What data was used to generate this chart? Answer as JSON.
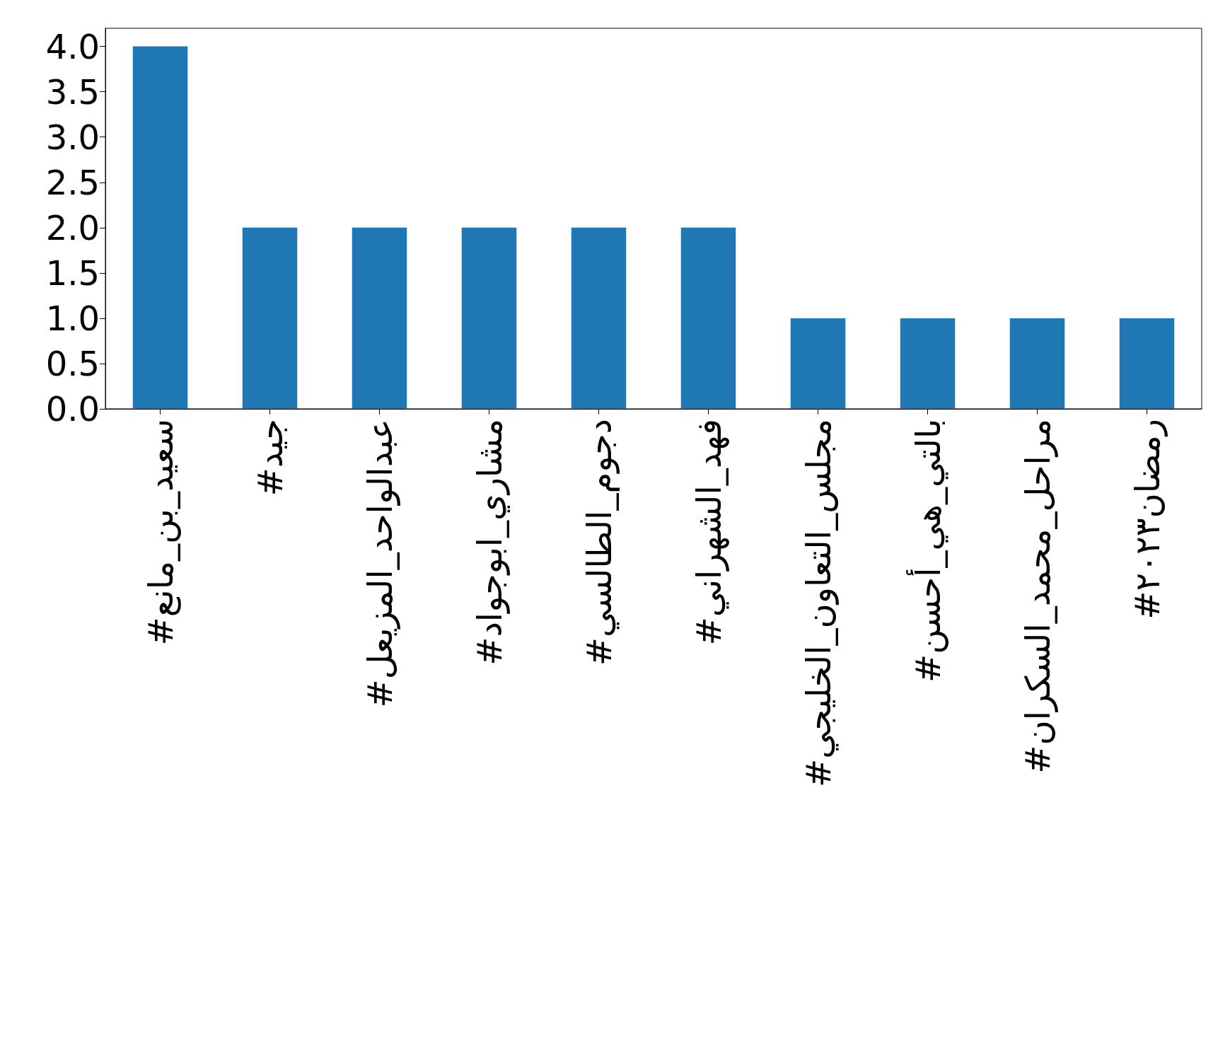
{
  "chart_data": {
    "type": "bar",
    "categories": [
      "#سعيد_بن_مانع",
      "#جيد",
      "#عبدالواحد_المزيعل",
      "#مشاري_ابوجواد",
      "#دجوم_الطالسي",
      "#فهد_الشهراني",
      "#مجلس_التعاون_الخليجي",
      "#بالتي_هي_أحسن",
      "#مراحل_محمد_السكران",
      "#رمضان٢٠٢٣"
    ],
    "values": [
      4,
      2,
      2,
      2,
      2,
      2,
      1,
      1,
      1,
      1
    ],
    "color": "#1f77b4",
    "ylim": [
      0,
      4.2
    ],
    "yticks": [
      {
        "value": 0,
        "label": "0.0"
      },
      {
        "value": 0.5,
        "label": "0.5"
      },
      {
        "value": 1,
        "label": "1.0"
      },
      {
        "value": 1.5,
        "label": "1.5"
      },
      {
        "value": 2,
        "label": "2.0"
      },
      {
        "value": 2.5,
        "label": "2.5"
      },
      {
        "value": 3,
        "label": "3.0"
      },
      {
        "value": 3.5,
        "label": "3.5"
      },
      {
        "value": 4,
        "label": "4.0"
      }
    ],
    "grid": false
  }
}
